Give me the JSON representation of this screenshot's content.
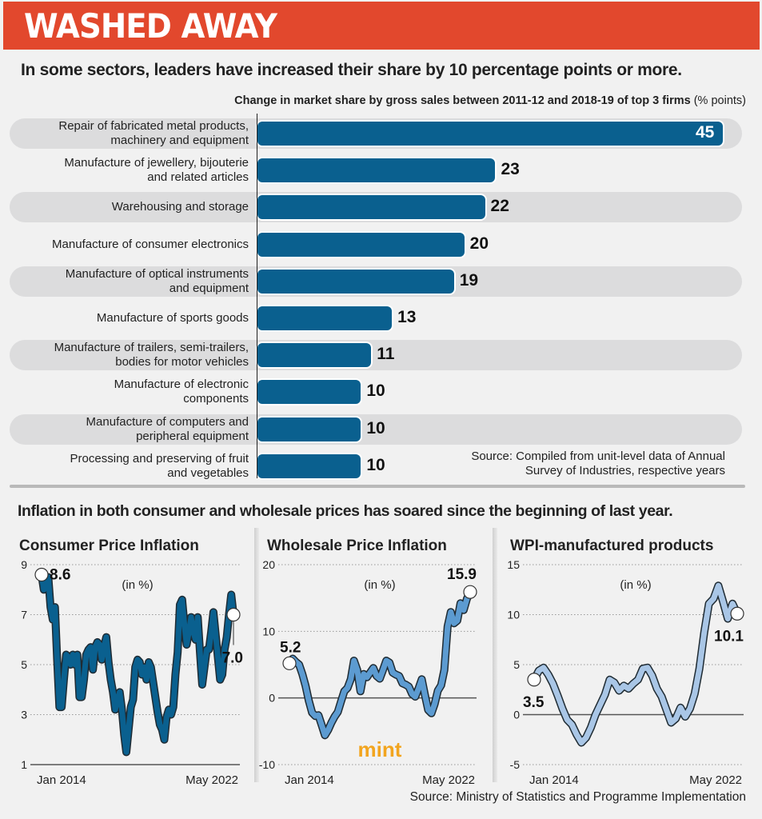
{
  "header": {
    "title": "WASHED AWAY",
    "subtitle": "In some sectors, leaders have increased their share by 10 percentage points or more.",
    "bar_caption_main": "Change in market share by gross sales between 2011-12 and 2018-19 of top 3 firms",
    "bar_caption_unit": " (% points)",
    "bar_source_line1": "Source: Compiled from unit-level data of Annual",
    "bar_source_line2": "Survey of Industries, respective years",
    "section2_subtitle": "Inflation in both consumer and wholesale prices has soared since the beginning of last year.",
    "final_source": "Source: Ministry of Statistics and Programme Implementation",
    "logo": "mint"
  },
  "colors": {
    "banner": "#e2482d",
    "bar": "#0a608f",
    "cpi_line": "#0a608f",
    "wpi_line": "#5c9bd1",
    "wpi_mfg_line": "#a9c6e6",
    "logo": "#f2a51f"
  },
  "chart_data": [
    {
      "type": "bar",
      "title": "Change in market share by gross sales between 2011-12 and 2018-19 of top 3 firms (% points)",
      "categories": [
        "Repair of fabricated metal products,\nmachinery and equipment",
        "Manufacture of jewellery, bijouterie\nand related articles",
        "Warehousing and storage",
        "Manufacture of consumer electronics",
        "Manufacture of optical instruments\nand equipment",
        "Manufacture of sports goods",
        "Manufacture of trailers, semi-trailers,\nbodies for motor vehicles",
        "Manufacture of electronic\ncomponents",
        "Manufacture of computers and\nperipheral equipment",
        "Processing and preserving of fruit\nand vegetables"
      ],
      "values": [
        45,
        23,
        22,
        20,
        19,
        13,
        11,
        10,
        10,
        10
      ],
      "xlabel": "",
      "ylabel": "% points",
      "xlim": [
        0,
        45
      ]
    },
    {
      "type": "line",
      "title": "Consumer Price Inflation",
      "unit_label": "(in %)",
      "x_start": "Jan 2014",
      "x_end": "May 2022",
      "ylim": [
        1,
        9
      ],
      "yticks": [
        1,
        3,
        5,
        7,
        9
      ],
      "start_value": 8.6,
      "end_value": 7.0,
      "series": [
        {
          "name": "CPI",
          "values": [
            8.6,
            8.0,
            8.1,
            8.5,
            7.3,
            6.8,
            7.3,
            5.2,
            3.3,
            3.3,
            4.4,
            5.4,
            5.3,
            5.0,
            5.4,
            5.0,
            5.4,
            3.7,
            3.7,
            4.4,
            5.4,
            5.6,
            5.7,
            4.8,
            5.7,
            5.9,
            5.8,
            5.2,
            5.7,
            6.1,
            5.1,
            4.4,
            3.9,
            3.2,
            3.6,
            3.9,
            3.2,
            2.2,
            1.5,
            2.4,
            3.3,
            3.6,
            4.9,
            5.2,
            5.1,
            4.6,
            4.9,
            4.4,
            5.1,
            4.9,
            4.3,
            3.7,
            3.1,
            2.6,
            2.4,
            2.0,
            2.9,
            3.2,
            3.0,
            3.3,
            4.6,
            5.5,
            7.4,
            7.6,
            6.6,
            5.8,
            6.3,
            6.9,
            6.3,
            6.0,
            6.9,
            5.5,
            4.2,
            4.9,
            5.6,
            5.6,
            6.3,
            7.1,
            6.2,
            5.3,
            4.4,
            4.6,
            5.6,
            6.1,
            7.0,
            7.8,
            7.0
          ]
        }
      ]
    },
    {
      "type": "line",
      "title": "Wholesale Price Inflation",
      "unit_label": "(in %)",
      "x_start": "Jan 2014",
      "x_end": "May 2022",
      "ylim": [
        -10,
        20
      ],
      "yticks": [
        -10,
        0,
        10,
        20
      ],
      "start_value": 5.2,
      "end_value": 15.9,
      "series": [
        {
          "name": "WPI",
          "values": [
            5.2,
            5.9,
            5.4,
            5.0,
            3.6,
            1.8,
            -0.4,
            -2.2,
            -2.7,
            -2.6,
            -4.1,
            -5.6,
            -4.8,
            -3.7,
            -2.8,
            -2.1,
            -0.5,
            1.0,
            1.5,
            2.8,
            5.6,
            4.2,
            1.0,
            3.6,
            3.1,
            3.8,
            4.5,
            3.3,
            2.9,
            4.2,
            5.6,
            5.3,
            3.8,
            3.5,
            3.3,
            2.2,
            2.0,
            1.7,
            0.6,
            0.2,
            1.4,
            2.8,
            0.4,
            -1.8,
            -2.3,
            -0.9,
            1.1,
            1.9,
            4.2,
            10.7,
            12.9,
            11.2,
            11.6,
            14.2,
            13.2,
            14.9,
            15.9
          ]
        }
      ]
    },
    {
      "type": "line",
      "title": "WPI-manufactured products",
      "unit_label": "(in %)",
      "x_start": "Jan 2014",
      "x_end": "May 2022",
      "ylim": [
        -5,
        15
      ],
      "yticks": [
        -5,
        0,
        5,
        10,
        15
      ],
      "start_value": 3.5,
      "end_value": 10.1,
      "series": [
        {
          "name": "WPI manufactured",
          "values": [
            3.5,
            4.4,
            4.7,
            4.0,
            3.1,
            1.9,
            0.6,
            -0.5,
            -1.0,
            -2.0,
            -2.8,
            -2.3,
            -1.3,
            0.0,
            1.0,
            2.0,
            3.5,
            3.2,
            2.4,
            2.9,
            2.6,
            3.1,
            3.5,
            4.6,
            4.7,
            3.9,
            2.6,
            1.8,
            0.5,
            -0.8,
            -0.4,
            0.7,
            -0.2,
            0.6,
            2.1,
            4.6,
            8.2,
            11.1,
            11.6,
            12.9,
            11.3,
            9.6,
            11.1,
            10.1
          ]
        }
      ]
    }
  ]
}
